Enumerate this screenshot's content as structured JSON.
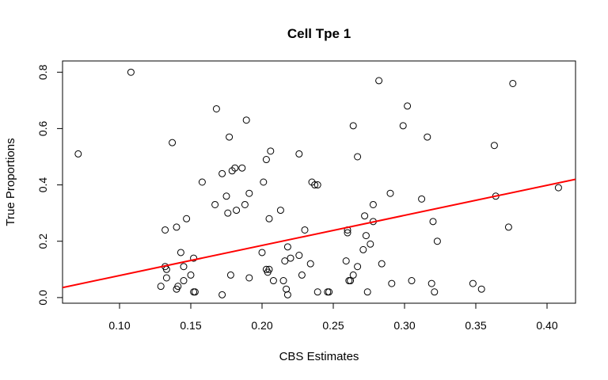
{
  "chart_data": {
    "type": "scatter",
    "title": "Cell Tpe 1",
    "xlabel": "CBS Estimates",
    "ylabel": "True Proportions",
    "xlim": [
      0.06,
      0.42
    ],
    "ylim": [
      -0.02,
      0.84
    ],
    "x_ticks": [
      0.1,
      0.15,
      0.2,
      0.25,
      0.3,
      0.35,
      0.4
    ],
    "x_tick_labels": [
      "0.10",
      "0.15",
      "0.20",
      "0.25",
      "0.30",
      "0.35",
      "0.40"
    ],
    "y_ticks": [
      0.0,
      0.2,
      0.4,
      0.6,
      0.8
    ],
    "y_tick_labels": [
      "0.0",
      "0.2",
      "0.4",
      "0.6",
      "0.8"
    ],
    "grid": false,
    "legend": "none",
    "point_color": "#000000",
    "line_color": "#ff0000",
    "points": [
      [
        0.071,
        0.51
      ],
      [
        0.108,
        0.8
      ],
      [
        0.129,
        0.04
      ],
      [
        0.132,
        0.24
      ],
      [
        0.132,
        0.11
      ],
      [
        0.133,
        0.1
      ],
      [
        0.133,
        0.07
      ],
      [
        0.137,
        0.55
      ],
      [
        0.14,
        0.25
      ],
      [
        0.14,
        0.03
      ],
      [
        0.141,
        0.04
      ],
      [
        0.143,
        0.16
      ],
      [
        0.145,
        0.06
      ],
      [
        0.145,
        0.11
      ],
      [
        0.147,
        0.28
      ],
      [
        0.15,
        0.08
      ],
      [
        0.152,
        0.14
      ],
      [
        0.152,
        0.02
      ],
      [
        0.153,
        0.02
      ],
      [
        0.158,
        0.41
      ],
      [
        0.167,
        0.33
      ],
      [
        0.168,
        0.67
      ],
      [
        0.172,
        0.44
      ],
      [
        0.172,
        0.01
      ],
      [
        0.175,
        0.36
      ],
      [
        0.176,
        0.3
      ],
      [
        0.177,
        0.57
      ],
      [
        0.178,
        0.08
      ],
      [
        0.179,
        0.45
      ],
      [
        0.181,
        0.46
      ],
      [
        0.182,
        0.31
      ],
      [
        0.186,
        0.46
      ],
      [
        0.188,
        0.33
      ],
      [
        0.189,
        0.63
      ],
      [
        0.191,
        0.37
      ],
      [
        0.191,
        0.07
      ],
      [
        0.2,
        0.16
      ],
      [
        0.201,
        0.41
      ],
      [
        0.203,
        0.1
      ],
      [
        0.203,
        0.49
      ],
      [
        0.204,
        0.09
      ],
      [
        0.205,
        0.1
      ],
      [
        0.205,
        0.28
      ],
      [
        0.206,
        0.52
      ],
      [
        0.208,
        0.06
      ],
      [
        0.213,
        0.31
      ],
      [
        0.215,
        0.06
      ],
      [
        0.216,
        0.13
      ],
      [
        0.217,
        0.03
      ],
      [
        0.218,
        0.18
      ],
      [
        0.218,
        0.01
      ],
      [
        0.22,
        0.14
      ],
      [
        0.226,
        0.51
      ],
      [
        0.226,
        0.15
      ],
      [
        0.228,
        0.08
      ],
      [
        0.23,
        0.24
      ],
      [
        0.234,
        0.12
      ],
      [
        0.235,
        0.41
      ],
      [
        0.237,
        0.4
      ],
      [
        0.239,
        0.4
      ],
      [
        0.239,
        0.02
      ],
      [
        0.246,
        0.02
      ],
      [
        0.247,
        0.02
      ],
      [
        0.259,
        0.13
      ],
      [
        0.26,
        0.24
      ],
      [
        0.26,
        0.23
      ],
      [
        0.261,
        0.06
      ],
      [
        0.262,
        0.06
      ],
      [
        0.264,
        0.61
      ],
      [
        0.264,
        0.08
      ],
      [
        0.267,
        0.11
      ],
      [
        0.267,
        0.5
      ],
      [
        0.271,
        0.17
      ],
      [
        0.272,
        0.29
      ],
      [
        0.273,
        0.22
      ],
      [
        0.274,
        0.02
      ],
      [
        0.276,
        0.19
      ],
      [
        0.278,
        0.27
      ],
      [
        0.278,
        0.33
      ],
      [
        0.282,
        0.77
      ],
      [
        0.284,
        0.12
      ],
      [
        0.29,
        0.37
      ],
      [
        0.291,
        0.05
      ],
      [
        0.299,
        0.61
      ],
      [
        0.302,
        0.68
      ],
      [
        0.305,
        0.06
      ],
      [
        0.312,
        0.35
      ],
      [
        0.316,
        0.57
      ],
      [
        0.319,
        0.05
      ],
      [
        0.32,
        0.27
      ],
      [
        0.321,
        0.02
      ],
      [
        0.323,
        0.2
      ],
      [
        0.348,
        0.05
      ],
      [
        0.354,
        0.03
      ],
      [
        0.363,
        0.54
      ],
      [
        0.364,
        0.36
      ],
      [
        0.373,
        0.25
      ],
      [
        0.376,
        0.76
      ],
      [
        0.408,
        0.39
      ]
    ],
    "fit_line": {
      "intercept": -0.0285,
      "slope": 1.068
    }
  }
}
